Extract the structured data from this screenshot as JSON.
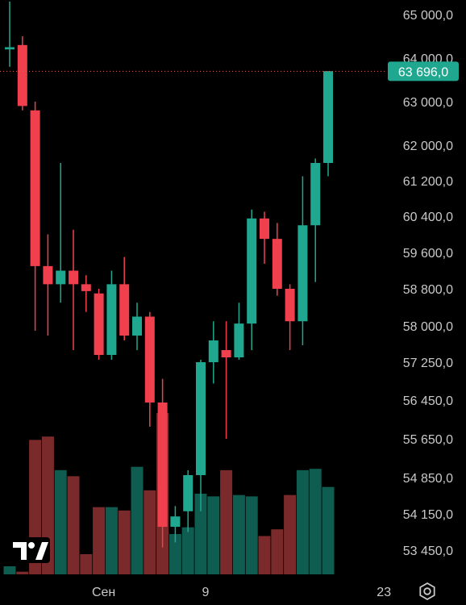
{
  "colors": {
    "background": "#000000",
    "up": "#1fa88f",
    "down": "#f0404d",
    "volume_up": "#0f5c50",
    "volume_down": "#7a2a2a",
    "axis_text": "#c9c9c9",
    "last_price_line": "#e0645a",
    "price_tag_bg": "#1fa88f"
  },
  "logo_text": "TV",
  "settings_icon": "gear-icon",
  "chart_data": {
    "type": "candlestick",
    "ylim": [
      53000,
      65600
    ],
    "y_ticks": [
      {
        "value": 65000,
        "label": "65 000,0"
      },
      {
        "value": 64000,
        "label": "64 000,0"
      },
      {
        "value": 63000,
        "label": "63 000,0"
      },
      {
        "value": 62000,
        "label": "62 000,0"
      },
      {
        "value": 61200,
        "label": "61 200,0"
      },
      {
        "value": 60400,
        "label": "60 400,0"
      },
      {
        "value": 59600,
        "label": "59 600,0"
      },
      {
        "value": 58800,
        "label": "58 800,0"
      },
      {
        "value": 58000,
        "label": "58 000,0"
      },
      {
        "value": 57250,
        "label": "57 250,0"
      },
      {
        "value": 56450,
        "label": "56 450,0"
      },
      {
        "value": 55650,
        "label": "55 650,0"
      },
      {
        "value": 54850,
        "label": "54 850,0"
      },
      {
        "value": 54150,
        "label": "54 150,0"
      },
      {
        "value": 53450,
        "label": "53 450,0"
      }
    ],
    "x_labels": [
      {
        "candle_index": 7,
        "label": "Сен"
      },
      {
        "candle_index": 15,
        "label": "9"
      },
      {
        "candle_index": 29,
        "label": "23"
      }
    ],
    "last_price": {
      "value": 63696,
      "label": "63 696,0"
    },
    "candles": [
      {
        "o": 64200,
        "h": 65300,
        "l": 63800,
        "c": 64250,
        "v": 12
      },
      {
        "o": 64300,
        "h": 64500,
        "l": 62800,
        "c": 62900,
        "v": 4
      },
      {
        "o": 62800,
        "h": 63000,
        "l": 57900,
        "c": 59300,
        "v": 200
      },
      {
        "o": 59300,
        "h": 60000,
        "l": 57800,
        "c": 58900,
        "v": 205
      },
      {
        "o": 58900,
        "h": 61600,
        "l": 58500,
        "c": 59200,
        "v": 155
      },
      {
        "o": 59200,
        "h": 60100,
        "l": 57500,
        "c": 58900,
        "v": 146
      },
      {
        "o": 58900,
        "h": 59100,
        "l": 58300,
        "c": 58750,
        "v": 30
      },
      {
        "o": 58700,
        "h": 58800,
        "l": 57300,
        "c": 57400,
        "v": 100
      },
      {
        "o": 57400,
        "h": 59200,
        "l": 57300,
        "c": 58900,
        "v": 100
      },
      {
        "o": 58900,
        "h": 59500,
        "l": 57700,
        "c": 57800,
        "v": 95
      },
      {
        "o": 57800,
        "h": 58500,
        "l": 57500,
        "c": 58200,
        "v": 160
      },
      {
        "o": 58200,
        "h": 58300,
        "l": 55900,
        "c": 56400,
        "v": 125
      },
      {
        "o": 56400,
        "h": 56900,
        "l": 53500,
        "c": 53900,
        "v": 240
      },
      {
        "o": 53900,
        "h": 54300,
        "l": 53600,
        "c": 54100,
        "v": 60
      },
      {
        "o": 54200,
        "h": 55000,
        "l": 53800,
        "c": 54900,
        "v": 70
      },
      {
        "o": 54900,
        "h": 57300,
        "l": 54200,
        "c": 57250,
        "v": 120
      },
      {
        "o": 57250,
        "h": 58100,
        "l": 56800,
        "c": 57700,
        "v": 116
      },
      {
        "o": 57500,
        "h": 58100,
        "l": 55650,
        "c": 57350,
        "v": 155
      },
      {
        "o": 57350,
        "h": 58500,
        "l": 57300,
        "c": 58050,
        "v": 118
      },
      {
        "o": 58050,
        "h": 60550,
        "l": 57500,
        "c": 60350,
        "v": 116
      },
      {
        "o": 60350,
        "h": 60500,
        "l": 59350,
        "c": 59900,
        "v": 57
      },
      {
        "o": 59900,
        "h": 60250,
        "l": 58650,
        "c": 58800,
        "v": 67
      },
      {
        "o": 58800,
        "h": 58900,
        "l": 57500,
        "c": 58100,
        "v": 118
      },
      {
        "o": 58100,
        "h": 61300,
        "l": 57600,
        "c": 60200,
        "v": 155
      },
      {
        "o": 60200,
        "h": 61700,
        "l": 58950,
        "c": 61600,
        "v": 157
      },
      {
        "o": 61600,
        "h": 63700,
        "l": 61300,
        "c": 63700,
        "v": 130
      }
    ]
  }
}
